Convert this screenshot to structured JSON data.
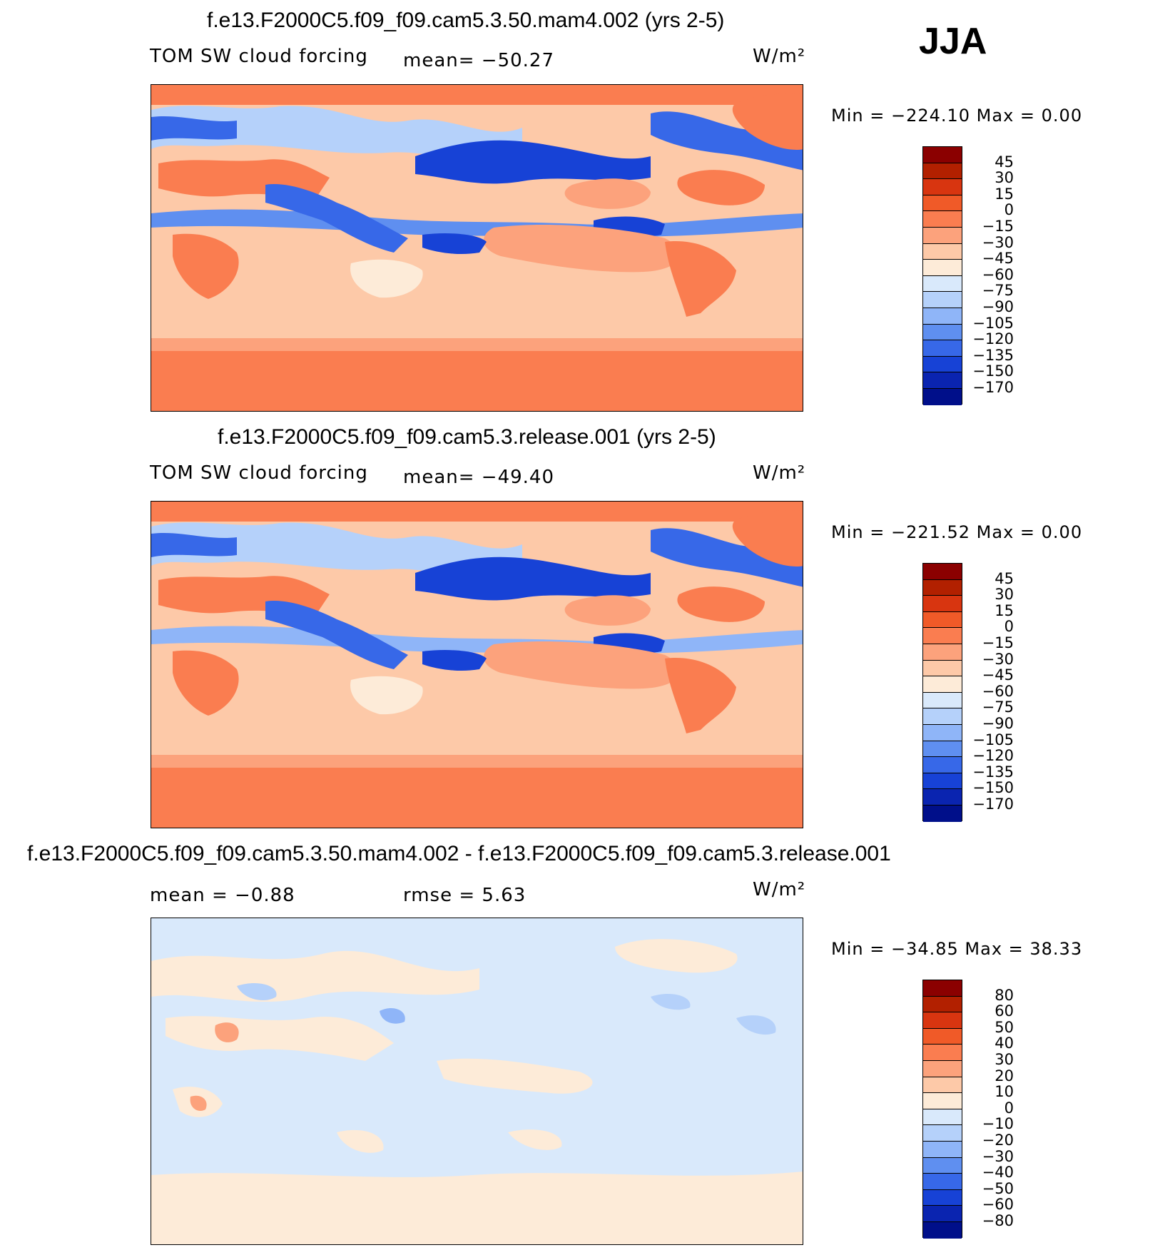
{
  "season": "JJA",
  "units": "W/m²",
  "panels": [
    {
      "title": "f.e13.F2000C5.f09_f09.cam5.3.50.mam4.002 (yrs 2-5)",
      "variable": "TOM SW cloud forcing",
      "mean_text": "mean= −50.27",
      "minmax": "Min = −224.10 Max =    0.00",
      "colorbar": {
        "labels": [
          "45",
          "30",
          "15",
          "0",
          "−15",
          "−30",
          "−45",
          "−60",
          "−75",
          "−90",
          "−105",
          "−120",
          "−135",
          "−150",
          "−170"
        ],
        "colors": [
          "#8b0000",
          "#b22000",
          "#d83510",
          "#f05a28",
          "#fa7d50",
          "#fca27c",
          "#fdc9a8",
          "#fdebd8",
          "#d9e9fb",
          "#b5d1fa",
          "#8fb5f8",
          "#5f8ff0",
          "#3768e8",
          "#1742d6",
          "#0a24b0",
          "#000f8a"
        ]
      }
    },
    {
      "title": "f.e13.F2000C5.f09_f09.cam5.3.release.001 (yrs 2-5)",
      "variable": "TOM SW cloud forcing",
      "mean_text": "mean= −49.40",
      "minmax": "Min = −221.52 Max =    0.00",
      "colorbar": {
        "labels": [
          "45",
          "30",
          "15",
          "0",
          "−15",
          "−30",
          "−45",
          "−60",
          "−75",
          "−90",
          "−105",
          "−120",
          "−135",
          "−150",
          "−170"
        ],
        "colors": [
          "#8b0000",
          "#b22000",
          "#d83510",
          "#f05a28",
          "#fa7d50",
          "#fca27c",
          "#fdc9a8",
          "#fdebd8",
          "#d9e9fb",
          "#b5d1fa",
          "#8fb5f8",
          "#5f8ff0",
          "#3768e8",
          "#1742d6",
          "#0a24b0",
          "#000f8a"
        ]
      }
    },
    {
      "title": "f.e13.F2000C5.f09_f09.cam5.3.50.mam4.002 - f.e13.F2000C5.f09_f09.cam5.3.release.001",
      "mean_text": "mean =   −0.88",
      "rmse_text": "rmse =    5.63",
      "minmax": "Min = −34.85 Max =  38.33",
      "colorbar": {
        "labels": [
          "80",
          "60",
          "50",
          "40",
          "30",
          "20",
          "10",
          "0",
          "−10",
          "−20",
          "−30",
          "−40",
          "−50",
          "−60",
          "−80"
        ],
        "colors": [
          "#8b0000",
          "#b22000",
          "#d83510",
          "#f05a28",
          "#fa7d50",
          "#fca27c",
          "#fdc9a8",
          "#fdebd8",
          "#d9e9fb",
          "#b5d1fa",
          "#8fb5f8",
          "#5f8ff0",
          "#3768e8",
          "#1742d6",
          "#0a24b0",
          "#000f8a"
        ]
      }
    }
  ]
}
